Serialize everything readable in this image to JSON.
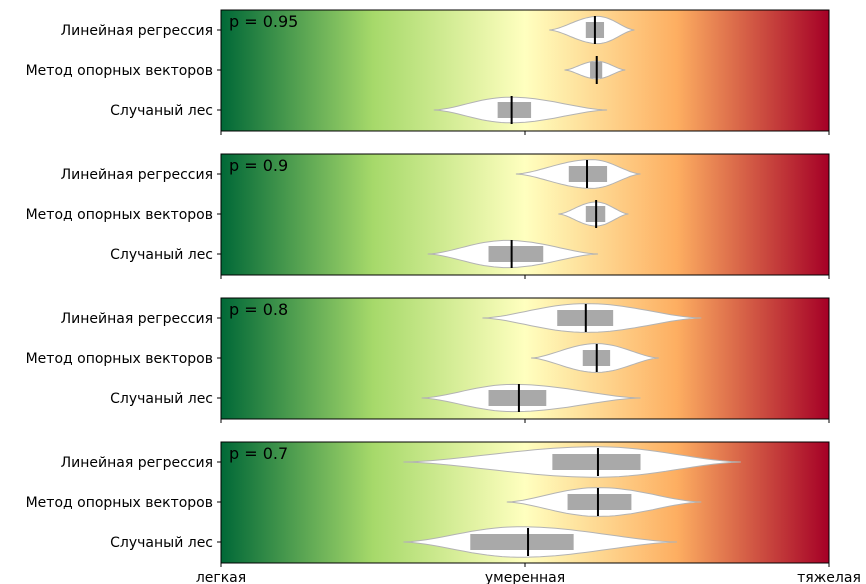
{
  "chart_data": {
    "type": "violin",
    "x_axis": {
      "tick_labels": [
        "легкая",
        "умеренная",
        "тяжелая"
      ],
      "range": [
        0,
        1
      ],
      "tick_values": [
        0,
        0.5,
        1
      ]
    },
    "background_gradient": {
      "stops": [
        "#006837",
        "#a6d96a",
        "#ffffbf",
        "#fdae61",
        "#a50026"
      ]
    },
    "categories": [
      "Линейная регрессия",
      "Метод опорных векторов",
      "Случаный лес"
    ],
    "panels": [
      {
        "label": "p = 0.95",
        "violins": [
          {
            "category": "Линейная регрессия",
            "min": 0.54,
            "max": 0.68,
            "q1": 0.6,
            "q3": 0.63,
            "median": 0.615,
            "peak": 0.62,
            "width": 0.85
          },
          {
            "category": "Метод опорных векторов",
            "min": 0.565,
            "max": 0.665,
            "q1": 0.607,
            "q3": 0.627,
            "median": 0.618,
            "peak": 0.618,
            "width": 0.55
          },
          {
            "category": "Случаный лес",
            "min": 0.35,
            "max": 0.635,
            "q1": 0.455,
            "q3": 0.51,
            "median": 0.478,
            "peak": 0.475,
            "width": 0.8
          }
        ]
      },
      {
        "label": "p = 0.9",
        "violins": [
          {
            "category": "Линейная регрессия",
            "min": 0.485,
            "max": 0.69,
            "q1": 0.572,
            "q3": 0.635,
            "median": 0.602,
            "peak": 0.61,
            "width": 0.9
          },
          {
            "category": "Метод опорных векторов",
            "min": 0.555,
            "max": 0.67,
            "q1": 0.6,
            "q3": 0.632,
            "median": 0.617,
            "peak": 0.617,
            "width": 0.75
          },
          {
            "category": "Случаный лес",
            "min": 0.34,
            "max": 0.62,
            "q1": 0.44,
            "q3": 0.53,
            "median": 0.478,
            "peak": 0.47,
            "width": 0.85
          }
        ]
      },
      {
        "label": "p = 0.8",
        "violins": [
          {
            "category": "Линейная регрессия",
            "min": 0.43,
            "max": 0.79,
            "q1": 0.553,
            "q3": 0.645,
            "median": 0.6,
            "peak": 0.6,
            "width": 0.9
          },
          {
            "category": "Метод опорных векторов",
            "min": 0.51,
            "max": 0.72,
            "q1": 0.595,
            "q3": 0.64,
            "median": 0.618,
            "peak": 0.618,
            "width": 0.9
          },
          {
            "category": "Случаный лес",
            "min": 0.33,
            "max": 0.69,
            "q1": 0.44,
            "q3": 0.535,
            "median": 0.49,
            "peak": 0.48,
            "width": 0.85
          }
        ]
      },
      {
        "label": "p = 0.7",
        "violins": [
          {
            "category": "Линейная регрессия",
            "min": 0.3,
            "max": 0.855,
            "q1": 0.545,
            "q3": 0.69,
            "median": 0.62,
            "peak": 0.62,
            "width": 0.95
          },
          {
            "category": "Метод опорных векторов",
            "min": 0.47,
            "max": 0.79,
            "q1": 0.57,
            "q3": 0.675,
            "median": 0.62,
            "peak": 0.62,
            "width": 0.9
          },
          {
            "category": "Случаный лес",
            "min": 0.3,
            "max": 0.75,
            "q1": 0.41,
            "q3": 0.58,
            "median": 0.505,
            "peak": 0.49,
            "width": 0.95
          }
        ]
      }
    ]
  }
}
